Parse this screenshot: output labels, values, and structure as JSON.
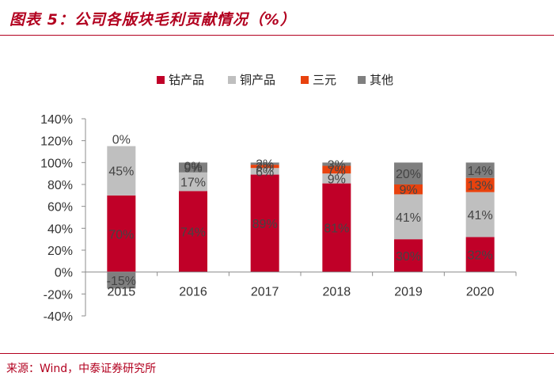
{
  "header": {
    "title": "图表 5：公司各版块毛利贡献情况（%）"
  },
  "footer": {
    "source": "来源：Wind，中泰证券研究所"
  },
  "chart_data": {
    "type": "bar",
    "stacked": true,
    "title": "图表 5：公司各版块毛利贡献情况（%）",
    "categories": [
      "2015",
      "2016",
      "2017",
      "2018",
      "2019",
      "2020"
    ],
    "series": [
      {
        "name": "钴产品",
        "color": "#c00028",
        "values": [
          70,
          74,
          89,
          81,
          30,
          32
        ],
        "labels": [
          "70%",
          "74%",
          "89%",
          "81%",
          "30%",
          "32%"
        ]
      },
      {
        "name": "铜产品",
        "color": "#bfbfbf",
        "values": [
          45,
          17,
          6,
          9,
          41,
          41
        ],
        "labels": [
          "45%",
          "17%",
          "6%",
          "9%",
          "41%",
          "41%"
        ]
      },
      {
        "name": "三元",
        "color": "#e8420e",
        "values": [
          0,
          0,
          3,
          7,
          9,
          13
        ],
        "labels": [
          "",
          "",
          "3%",
          "7%",
          "9%",
          "13%"
        ]
      },
      {
        "name": "其他",
        "color": "#7f7f7f",
        "values": [
          -15,
          9,
          2,
          3,
          20,
          14
        ],
        "labels": [
          "-15%",
          "9%",
          "2%",
          "3%",
          "20%",
          "14%"
        ]
      }
    ],
    "extra_labels": [
      {
        "category": "2015",
        "text": "0%"
      },
      {
        "category": "2016",
        "text": "0%"
      }
    ],
    "yticks": [
      "140%",
      "120%",
      "100%",
      "80%",
      "60%",
      "40%",
      "20%",
      "0%",
      "-20%",
      "-40%"
    ],
    "ylim": [
      -40,
      140
    ],
    "ytick_step": 20,
    "legend_position": "top-center",
    "xlabel": "",
    "ylabel": ""
  }
}
